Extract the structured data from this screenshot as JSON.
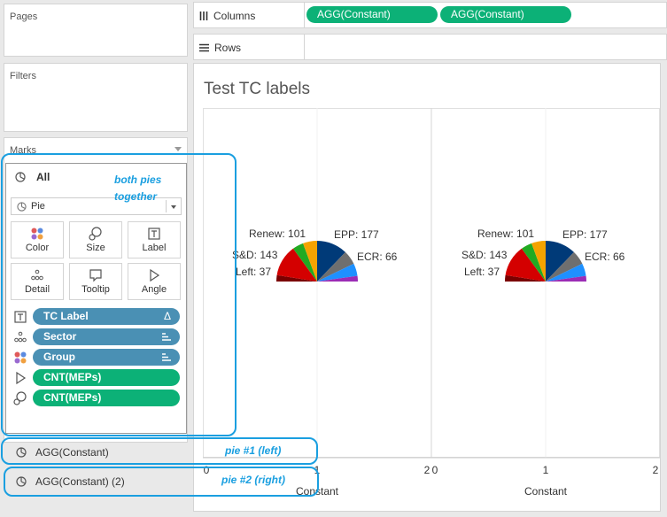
{
  "sidebar": {
    "pages_title": "Pages",
    "filters_title": "Filters",
    "marks_title": "Marks",
    "marks_all": "All",
    "mark_type": "Pie",
    "buttons": [
      "Color",
      "Size",
      "Label",
      "Detail",
      "Tooltip",
      "Angle"
    ],
    "fields": [
      {
        "name": "TC Label",
        "color": "#4a90b4",
        "icon": "text-icon",
        "suffix": "Δ"
      },
      {
        "name": "Sector",
        "color": "#4a90b4",
        "icon": "detail-icon",
        "suffix": "sort-icon"
      },
      {
        "name": "Group",
        "color": "#4a90b4",
        "icon": "color-icon",
        "suffix": "sort-icon"
      },
      {
        "name": "CNT(MEPs)",
        "color": "#0cb177",
        "icon": "angle-icon",
        "suffix": ""
      },
      {
        "name": "CNT(MEPs)",
        "color": "#0cb177",
        "icon": "size-icon",
        "suffix": ""
      }
    ],
    "agg_rows": [
      "AGG(Constant)",
      "AGG(Constant) (2)"
    ]
  },
  "shelves": {
    "columns_label": "Columns",
    "rows_label": "Rows",
    "column_pills": [
      "AGG(Constant)",
      "AGG(Constant)"
    ]
  },
  "view": {
    "title": "Test TC labels",
    "axis_title": "Constant",
    "axis_ticks_left": [
      "0",
      "1",
      "2"
    ],
    "axis_ticks_right": [
      "0",
      "1",
      "2"
    ]
  },
  "chart_data": [
    {
      "type": "pie",
      "labels": [
        "Renew: 101",
        "EPP: 177",
        "S&D: 143",
        "ECR: 66",
        "Left: 37"
      ],
      "slices": [
        {
          "color": "#003a78"
        },
        {
          "color": "#6f6f6f"
        },
        {
          "color": "#1e90ff"
        },
        {
          "color": "#9b2cb5"
        },
        {
          "color": "#7a0000"
        },
        {
          "color": "#d40000"
        },
        {
          "color": "#22aa22"
        },
        {
          "color": "#f5a300"
        }
      ]
    },
    {
      "type": "pie",
      "labels": [
        "Renew: 101",
        "EPP: 177",
        "S&D: 143",
        "ECR: 66",
        "Left: 37"
      ]
    }
  ],
  "annotations": {
    "marks": "both pies together",
    "pie1": "pie #1 (left)",
    "pie2": "pie #2 (right)"
  },
  "colors": {
    "accent_annotation": "#1a9fe0",
    "measure_pill": "#0cb177",
    "dimension_pill": "#4a90b4"
  }
}
